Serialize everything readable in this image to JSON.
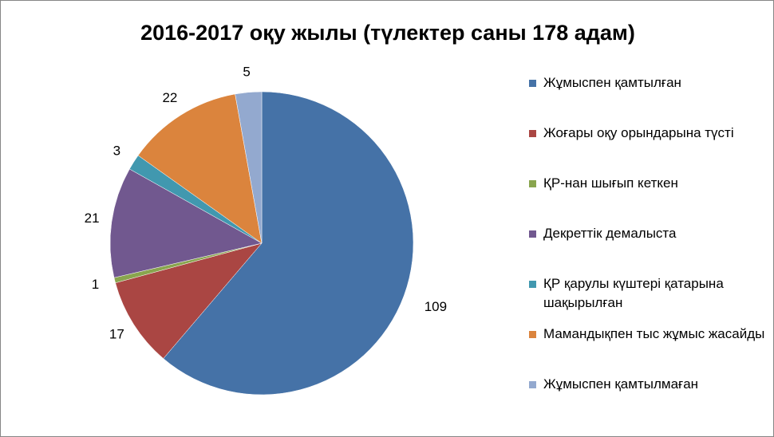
{
  "chart_data": {
    "type": "pie",
    "title": "2016-2017 оқу жылы (түлектер саны 178 адам)",
    "categories": [
      "Жұмыспен қамтылған",
      "Жоғары оқу орындарына түсті",
      "ҚР-нан шығып кеткен",
      "Декреттік демалыста",
      "ҚР қарулы күштері қатарына шақырылған",
      "Мамандықпен тыс жұмыс жасайды",
      "Жұмыспен қамтылмаған"
    ],
    "values": [
      109,
      17,
      1,
      21,
      3,
      22,
      5
    ],
    "colors": [
      "#4572a7",
      "#aa4643",
      "#89a54e",
      "#71588f",
      "#4198af",
      "#db843d",
      "#93a9cf"
    ],
    "legend": "right"
  }
}
